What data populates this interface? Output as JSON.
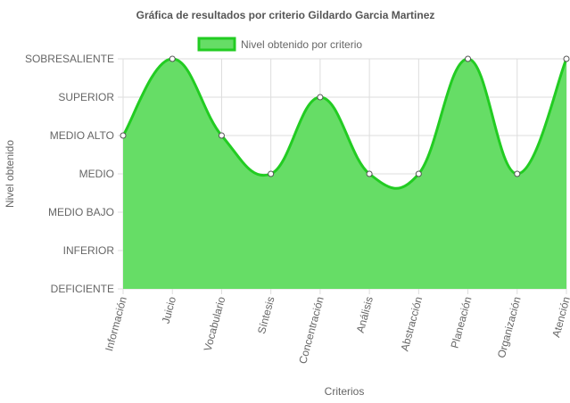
{
  "chart_data": {
    "type": "area",
    "title": "Gráfica de resultados por criterio Gildardo Garcia Martinez",
    "xlabel": "Criterios",
    "ylabel": "Nivel obtenido",
    "categories": [
      "Información",
      "Juicio",
      "Vocabulario",
      "Síntesis",
      "Concentración",
      "Análisis",
      "Abstracción",
      "Planeación",
      "Organización",
      "Atención"
    ],
    "y_levels": [
      "DEFICIENTE",
      "INFERIOR",
      "MEDIO BAJO",
      "MEDIO",
      "MEDIO ALTO",
      "SUPERIOR",
      "SOBRESALIENTE"
    ],
    "ylim": [
      0,
      6
    ],
    "grid": true,
    "legend_position": "top",
    "series": [
      {
        "name": "Nivel obtenido por criterio",
        "values": [
          4,
          6,
          4,
          3,
          5,
          3,
          3,
          6,
          3,
          6
        ]
      }
    ],
    "colors": {
      "fill": "#66dd66",
      "line": "#22cc22",
      "grid": "#dddddd",
      "point_fill": "#ffffff",
      "point_stroke": "#555555"
    }
  }
}
